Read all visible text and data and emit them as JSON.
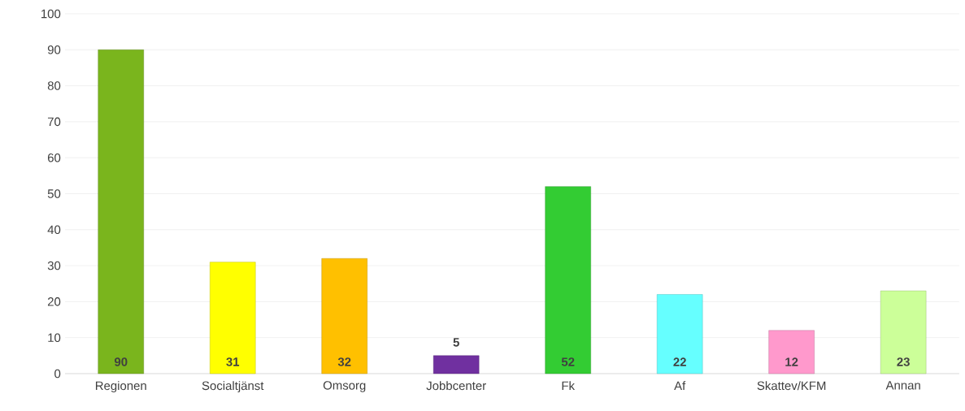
{
  "chart_data": {
    "type": "bar",
    "categories": [
      "Regionen",
      "Socialtjänst",
      "Omsorg",
      "Jobbcenter",
      "Fk",
      "Af",
      "Skattev/KFM",
      "Annan"
    ],
    "values": [
      90,
      31,
      32,
      5,
      52,
      22,
      12,
      23
    ],
    "colors": [
      "#7ab51d",
      "#ffff00",
      "#ffc000",
      "#7030a0",
      "#33cc33",
      "#66ffff",
      "#ff99cc",
      "#ccff99"
    ],
    "ylim": [
      0,
      100
    ],
    "yticks": [
      0,
      10,
      20,
      30,
      40,
      50,
      60,
      70,
      80,
      90,
      100
    ],
    "grid": "y",
    "data_labels": true
  }
}
